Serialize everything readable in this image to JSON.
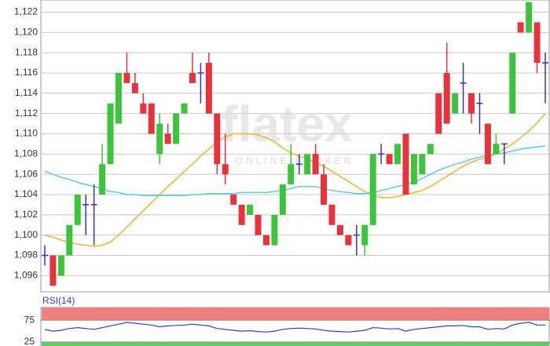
{
  "chart_data": [
    {
      "type": "candlestick",
      "watermark": "flatex",
      "watermark_sub": "ONLINE BROKER",
      "ylim": [
        1094.4,
        1123.2
      ],
      "yticks": [
        {
          "value": 1096,
          "label": "1,096"
        },
        {
          "value": 1098,
          "label": "1,098"
        },
        {
          "value": 1100,
          "label": "1,100"
        },
        {
          "value": 1102,
          "label": "1,102"
        },
        {
          "value": 1104,
          "label": "1,104"
        },
        {
          "value": 1106,
          "label": "1,106"
        },
        {
          "value": 1108,
          "label": "1,108"
        },
        {
          "value": 1110,
          "label": "1,110"
        },
        {
          "value": 1112,
          "label": "1,112"
        },
        {
          "value": 1114,
          "label": "1,114"
        },
        {
          "value": 1116,
          "label": "1,116"
        },
        {
          "value": 1118,
          "label": "1,118"
        },
        {
          "value": 1120,
          "label": "1,120"
        },
        {
          "value": 1122,
          "label": "1,122"
        }
      ],
      "grid": true,
      "up_color": "#3dc43d",
      "down_color": "#e8323c",
      "flat_color": "#3b2fc9",
      "open": [
        1098,
        1098,
        1096,
        1098,
        1101,
        1103,
        1103,
        1104,
        1107,
        1111,
        1116,
        1115,
        1113,
        1113,
        1108,
        1110,
        1109,
        1112,
        1116,
        1116,
        1117,
        1112,
        1107,
        1104,
        1103,
        1102,
        1102,
        1100,
        1099,
        1102,
        1105,
        1107,
        1106,
        1108,
        1106,
        1103,
        1101,
        1100,
        1100,
        1099,
        1101,
        1108,
        1108,
        1107,
        1110,
        1105,
        1106,
        1108,
        1114,
        1116,
        1112,
        1115,
        1114,
        1113,
        1111,
        1108,
        1109,
        1112,
        1121,
        1120,
        1121,
        1117
      ],
      "high": [
        1099,
        1098,
        1098,
        1101,
        1104,
        1104,
        1105,
        1109,
        1113,
        1116,
        1118,
        1116,
        1114,
        1113,
        1112,
        1111,
        1112,
        1113,
        1118,
        1117,
        1118,
        1112,
        1110,
        1104,
        1103,
        1103,
        1102,
        1100,
        1102,
        1105,
        1109,
        1108,
        1108,
        1109,
        1107,
        1103,
        1101,
        1100,
        1101,
        1101,
        1108,
        1109,
        1108,
        1109,
        1110,
        1108,
        1108,
        1109,
        1114,
        1119,
        1114,
        1117,
        1114,
        1114,
        1111,
        1110,
        1109,
        1118,
        1121,
        1123,
        1121,
        1118
      ],
      "low": [
        1097,
        1095,
        1096,
        1098,
        1101,
        1100,
        1099,
        1104,
        1107,
        1111,
        1115,
        1114,
        1112,
        1110,
        1107,
        1109,
        1109,
        1112,
        1115,
        1113,
        1112,
        1106,
        1105,
        1103,
        1101,
        1102,
        1100,
        1099,
        1099,
        1102,
        1105,
        1106,
        1106,
        1106,
        1103,
        1101,
        1100,
        1099,
        1098,
        1098,
        1101,
        1107,
        1107,
        1107,
        1104,
        1105,
        1106,
        1108,
        1110,
        1111,
        1112,
        1112,
        1111,
        1110,
        1107,
        1108,
        1107,
        1112,
        1120,
        1120,
        1116,
        1113
      ],
      "close": [
        1098,
        1095,
        1098,
        1101,
        1104,
        1103,
        1103,
        1107,
        1113,
        1116,
        1115,
        1114,
        1112,
        1110,
        1111,
        1109,
        1112,
        1113,
        1115,
        1116,
        1112,
        1107,
        1106,
        1103,
        1101,
        1103,
        1100,
        1099,
        1102,
        1105,
        1107,
        1107,
        1108,
        1106,
        1103,
        1101,
        1100,
        1099,
        1100,
        1101,
        1108,
        1108,
        1107,
        1109,
        1104,
        1108,
        1108,
        1109,
        1110,
        1111,
        1114,
        1115,
        1112,
        1113,
        1107,
        1109,
        1109,
        1118,
        1120,
        1123,
        1117,
        1117
      ],
      "series": [
        {
          "color": "#f0b232",
          "values": [
            1100,
            1099.8,
            1099.5,
            1099.3,
            1099.1,
            1099,
            1098.9,
            1099,
            1099.3,
            1100,
            1100.8,
            1101.6,
            1102.4,
            1103.2,
            1104,
            1104.8,
            1105.5,
            1106.3,
            1107,
            1107.8,
            1108.5,
            1109.2,
            1109.7,
            1110,
            1110,
            1110,
            1109.9,
            1109.6,
            1109.2,
            1108.6,
            1108.1,
            1107.8,
            1107.5,
            1107.2,
            1106.8,
            1106.3,
            1105.8,
            1105.3,
            1104.8,
            1104.3,
            1103.9,
            1103.7,
            1103.7,
            1103.8,
            1104,
            1104.2,
            1104.4,
            1104.8,
            1105.3,
            1105.8,
            1106.3,
            1106.8,
            1107.2,
            1107.5,
            1107.7,
            1108,
            1108.5,
            1109,
            1109.6,
            1110.3,
            1111.1,
            1112
          ]
        },
        {
          "color": "#5ccbe2",
          "values": [
            1106.3,
            1106,
            1105.7,
            1105.5,
            1105.2,
            1105,
            1104.8,
            1104.6,
            1104.3,
            1104.2,
            1104,
            1104,
            1103.9,
            1103.9,
            1103.9,
            1103.9,
            1103.9,
            1103.9,
            1104,
            1104,
            1104.1,
            1104.1,
            1104.1,
            1104.1,
            1104.2,
            1104.2,
            1104.2,
            1104.2,
            1104.3,
            1104.4,
            1104.6,
            1104.8,
            1104.8,
            1104.8,
            1104.6,
            1104.4,
            1104.3,
            1104.2,
            1104.1,
            1104.1,
            1104.2,
            1104.4,
            1104.6,
            1104.8,
            1105,
            1105.2,
            1105.6,
            1106,
            1106.4,
            1106.7,
            1107,
            1107.2,
            1107.5,
            1107.7,
            1107.9,
            1108,
            1108.1,
            1108.3,
            1108.5,
            1108.6,
            1108.7,
            1108.8
          ]
        }
      ]
    },
    {
      "type": "line",
      "title": "RSI(14)",
      "ylim": [
        16,
        104
      ],
      "yticks": [
        75,
        25
      ],
      "overbought_color": "#f08080",
      "oversold_color": "#5fcf5f",
      "series": [
        {
          "color": "#2b3fd6",
          "values": [
            54,
            50,
            52,
            56,
            58,
            56,
            54,
            58,
            62,
            66,
            70,
            68,
            66,
            64,
            60,
            62,
            63,
            64,
            66,
            64,
            62,
            56,
            54,
            52,
            50,
            51,
            49,
            48,
            50,
            54,
            56,
            57,
            56,
            55,
            52,
            50,
            49,
            48,
            50,
            52,
            58,
            57,
            55,
            56,
            50,
            54,
            56,
            58,
            60,
            62,
            62,
            63,
            60,
            60,
            54,
            56,
            55,
            64,
            68,
            70,
            64,
            64
          ]
        }
      ]
    }
  ]
}
